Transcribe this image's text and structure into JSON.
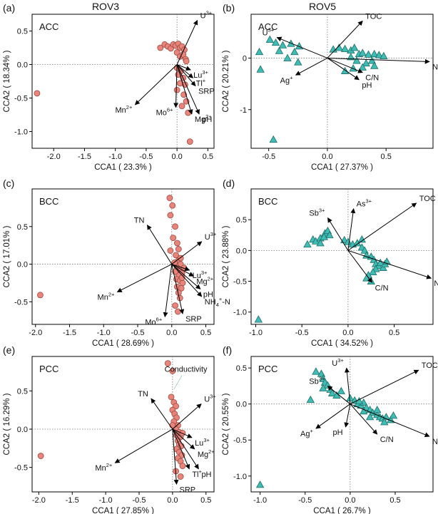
{
  "figure": {
    "column_titles": [
      "ROV3",
      "ROV5"
    ],
    "colors": {
      "circle_fill": "#e8847a",
      "circle_stroke": "#9a4a42",
      "triangle_fill": "#3fbcb4",
      "triangle_stroke": "#1d6e69",
      "arrow": "#000000",
      "dotted": "#777777"
    }
  },
  "chart_data": [
    {
      "type": "scatter",
      "panel_label": "(a)",
      "title": "ACC",
      "xlabel": "CCA1 ( 23.3% )",
      "ylabel": "CCA2 ( 18.34% )",
      "xlim": [
        -2.35,
        0.6
      ],
      "ylim": [
        -1.25,
        0.75
      ],
      "xticks": [
        -2.0,
        -1.5,
        -1.0,
        -0.5,
        0.0,
        0.5
      ],
      "xtick_labels": [
        "-2.0",
        "-1.5",
        "-1.0",
        "-0.5",
        "0.0",
        "0.5"
      ],
      "yticks": [
        -1.0,
        -0.5,
        0.0,
        0.5
      ],
      "ytick_labels": [
        "-1.0",
        "-0.5",
        "0.0",
        "0.5"
      ],
      "marker": "circle",
      "points": [
        [
          -2.27,
          -0.43
        ],
        [
          -0.27,
          0.25
        ],
        [
          -0.2,
          0.3
        ],
        [
          -0.15,
          0.27
        ],
        [
          -0.1,
          0.24
        ],
        [
          -0.06,
          0.3
        ],
        [
          -0.02,
          0.28
        ],
        [
          0.02,
          0.31
        ],
        [
          0.05,
          0.25
        ],
        [
          0.08,
          0.27
        ],
        [
          0.12,
          0.22
        ],
        [
          0.0,
          0.18
        ],
        [
          0.05,
          0.12
        ],
        [
          0.1,
          0.15
        ],
        [
          0.14,
          0.08
        ],
        [
          0.0,
          -0.05
        ],
        [
          0.06,
          -0.1
        ],
        [
          0.1,
          -0.2
        ],
        [
          0.05,
          -0.28
        ],
        [
          0.13,
          -0.3
        ],
        [
          0.0,
          -0.38
        ],
        [
          0.11,
          -0.45
        ],
        [
          0.15,
          -0.55
        ],
        [
          0.08,
          -0.62
        ],
        [
          0.18,
          -0.72
        ],
        [
          0.21,
          -1.15
        ],
        [
          0.15,
          0.05
        ],
        [
          0.02,
          -0.15
        ]
      ],
      "arrows": [
        {
          "label": "U",
          "sup": "3+",
          "sub": "",
          "x": 0.33,
          "y": 0.66
        },
        {
          "label": "Lu",
          "sup": "3+",
          "sub": "",
          "x": 0.22,
          "y": -0.08
        },
        {
          "label": "Tl",
          "sup": "+",
          "sub": "",
          "x": 0.26,
          "y": -0.2
        },
        {
          "label": "SRP",
          "sup": "",
          "sub": "",
          "x": 0.3,
          "y": -0.32
        },
        {
          "label": "Mn",
          "sup": "2+",
          "sub": "",
          "x": -0.68,
          "y": -0.6
        },
        {
          "label": "Mo",
          "sup": "6+",
          "sub": "",
          "x": -0.02,
          "y": -0.64
        },
        {
          "label": "Mg",
          "sup": "2+",
          "sub": "",
          "x": 0.24,
          "y": -0.74
        },
        {
          "label": "pH",
          "sup": "",
          "sub": "",
          "x": 0.36,
          "y": -0.74
        }
      ]
    },
    {
      "type": "scatter",
      "panel_label": "(b)",
      "title": "ACC",
      "xlabel": "CCA1 ( 27.37% )",
      "ylabel": "CCA2 ( 20.21% )",
      "xlim": [
        -0.65,
        0.9
      ],
      "ylim": [
        -1.75,
        0.85
      ],
      "xticks": [
        -0.5,
        0.0,
        0.5
      ],
      "xtick_labels": [
        "-0.5",
        "0.0",
        "0.5"
      ],
      "yticks": [
        -1.0,
        0.0
      ],
      "ytick_labels": [
        "-1",
        "0"
      ],
      "marker": "triangle",
      "points": [
        [
          -0.58,
          0.12
        ],
        [
          -0.57,
          -0.22
        ],
        [
          -0.49,
          0.36
        ],
        [
          -0.44,
          0.3
        ],
        [
          -0.41,
          0.14
        ],
        [
          -0.38,
          0.25
        ],
        [
          -0.31,
          0.28
        ],
        [
          -0.28,
          0.12
        ],
        [
          -0.24,
          0.23
        ],
        [
          -0.34,
          0.0
        ],
        [
          -0.25,
          -0.08
        ],
        [
          -0.46,
          -1.58
        ],
        [
          0.05,
          0.17
        ],
        [
          0.1,
          0.2
        ],
        [
          0.15,
          0.18
        ],
        [
          0.2,
          0.15
        ],
        [
          0.23,
          0.2
        ],
        [
          0.27,
          0.08
        ],
        [
          0.3,
          0.1
        ],
        [
          0.35,
          0.07
        ],
        [
          0.4,
          0.08
        ],
        [
          0.44,
          0.06
        ],
        [
          0.48,
          0.04
        ],
        [
          0.2,
          0.02
        ],
        [
          0.25,
          -0.05
        ],
        [
          0.33,
          -0.1
        ],
        [
          0.38,
          -0.05
        ],
        [
          0.3,
          -0.18
        ],
        [
          0.4,
          -0.15
        ],
        [
          0.22,
          -0.2
        ],
        [
          0.15,
          -0.25
        ]
      ],
      "arrows": [
        {
          "label": "U",
          "sup": "3+",
          "sub": "",
          "x": -0.43,
          "y": 0.4
        },
        {
          "label": "TOC",
          "sup": "",
          "sub": "",
          "x": 0.3,
          "y": 0.72
        },
        {
          "label": "NH",
          "sup": "+",
          "sub": "4",
          "suffix": "-N",
          "x": 0.87,
          "y": -0.07
        },
        {
          "label": "C/N",
          "sup": "",
          "sub": "",
          "x": 0.3,
          "y": -0.28
        },
        {
          "label": "pH",
          "sup": "",
          "sub": "",
          "x": 0.27,
          "y": -0.42
        },
        {
          "label": "Ag",
          "sup": "+",
          "sub": "",
          "x": -0.27,
          "y": -0.33
        }
      ]
    },
    {
      "type": "scatter",
      "panel_label": "(c)",
      "title": "BCC",
      "xlabel": "CCA1 ( 28.69% )",
      "ylabel": "CCA2 ( 17.01% )",
      "xlim": [
        -2.05,
        0.62
      ],
      "ylim": [
        -0.8,
        1.0
      ],
      "xticks": [
        -2.0,
        -1.5,
        -1.0,
        -0.5,
        0.0,
        0.5
      ],
      "xtick_labels": [
        "-2.0",
        "-1.5",
        "-1.0",
        "-0.5",
        "0.0",
        "0.5"
      ],
      "yticks": [
        -0.5,
        0.0,
        0.5
      ],
      "ytick_labels": [
        "-0.5",
        "0.0",
        "0.5"
      ],
      "marker": "circle",
      "points": [
        [
          -1.93,
          -0.41
        ],
        [
          -0.03,
          0.88
        ],
        [
          0.01,
          0.78
        ],
        [
          -0.02,
          0.65
        ],
        [
          0.05,
          0.5
        ],
        [
          0.02,
          0.35
        ],
        [
          0.08,
          0.28
        ],
        [
          0.1,
          0.2
        ],
        [
          -0.02,
          0.18
        ],
        [
          0.06,
          0.12
        ],
        [
          0.1,
          0.05
        ],
        [
          0.13,
          0.0
        ],
        [
          0.08,
          -0.05
        ],
        [
          0.12,
          -0.08
        ],
        [
          0.15,
          -0.12
        ],
        [
          0.1,
          -0.15
        ],
        [
          0.07,
          -0.2
        ],
        [
          0.12,
          -0.22
        ],
        [
          0.16,
          -0.25
        ],
        [
          0.08,
          -0.3
        ],
        [
          0.14,
          -0.32
        ],
        [
          0.1,
          -0.38
        ],
        [
          0.12,
          -0.45
        ],
        [
          0.05,
          -0.55
        ],
        [
          0.09,
          -0.63
        ],
        [
          0.13,
          0.08
        ],
        [
          0.04,
          0.02
        ],
        [
          0.15,
          -0.18
        ],
        [
          0.18,
          -0.05
        ],
        [
          0.05,
          -0.1
        ]
      ],
      "arrows": [
        {
          "label": "TN",
          "sup": "",
          "sub": "",
          "x": -0.36,
          "y": 0.52
        },
        {
          "label": "U",
          "sup": "3+",
          "sub": "",
          "x": 0.44,
          "y": 0.3
        },
        {
          "label": "Lu",
          "sup": "3+",
          "sub": "",
          "x": 0.26,
          "y": -0.08
        },
        {
          "label": "Mg",
          "sup": "2+",
          "sub": "",
          "x": 0.32,
          "y": -0.16
        },
        {
          "label": "pH",
          "sup": "",
          "sub": "",
          "x": 0.42,
          "y": -0.33
        },
        {
          "label": "NH",
          "sup": "+",
          "sub": "4",
          "suffix": "-N",
          "x": 0.44,
          "y": -0.43
        },
        {
          "label": "SRP",
          "sup": "",
          "sub": "",
          "x": 0.16,
          "y": -0.66
        },
        {
          "label": "Mo",
          "sup": "6+",
          "sub": "",
          "x": -0.1,
          "y": -0.7
        },
        {
          "label": "Mn",
          "sup": "2+",
          "sub": "",
          "x": -0.8,
          "y": -0.37
        }
      ]
    },
    {
      "type": "scatter",
      "panel_label": "(d)",
      "title": "BCC",
      "xlabel": "CCA1 ( 34.52% )",
      "ylabel": "CCA2 ( 23.88% )",
      "xlim": [
        -1.05,
        0.92
      ],
      "ylim": [
        -1.2,
        1.0
      ],
      "xticks": [
        -1.0,
        -0.5,
        0.0,
        0.5
      ],
      "xtick_labels": [
        "-1.0",
        "-0.5",
        "0.0",
        "0.5"
      ],
      "yticks": [
        -1.0,
        -0.5,
        0.0,
        0.5
      ],
      "ytick_labels": [
        "-1.0",
        "-0.5",
        "0.0",
        "0.5"
      ],
      "marker": "triangle",
      "points": [
        [
          -0.97,
          -1.12
        ],
        [
          -0.44,
          0.1
        ],
        [
          -0.38,
          0.18
        ],
        [
          -0.35,
          0.15
        ],
        [
          -0.3,
          0.2
        ],
        [
          -0.25,
          0.28
        ],
        [
          -0.22,
          0.32
        ],
        [
          -0.26,
          0.22
        ],
        [
          -0.2,
          0.25
        ],
        [
          -0.3,
          0.12
        ],
        [
          -0.04,
          0.17
        ],
        [
          0.0,
          0.14
        ],
        [
          0.05,
          0.1
        ],
        [
          0.1,
          0.12
        ],
        [
          0.15,
          0.05
        ],
        [
          0.18,
          0.0
        ],
        [
          0.2,
          -0.08
        ],
        [
          0.25,
          -0.1
        ],
        [
          0.28,
          -0.15
        ],
        [
          0.3,
          -0.22
        ],
        [
          0.33,
          -0.25
        ],
        [
          0.35,
          -0.2
        ],
        [
          0.38,
          -0.28
        ],
        [
          0.4,
          -0.22
        ],
        [
          0.42,
          -0.18
        ],
        [
          0.3,
          -0.3
        ],
        [
          0.27,
          -0.35
        ],
        [
          0.22,
          -0.4
        ],
        [
          0.25,
          -0.5
        ],
        [
          0.2,
          -0.45
        ],
        [
          0.15,
          0.18
        ]
      ],
      "arrows": [
        {
          "label": "Sb",
          "sup": "3+",
          "sub": "",
          "x": -0.22,
          "y": 0.53
        },
        {
          "label": "As",
          "sup": "3+",
          "sub": "",
          "x": 0.06,
          "y": 0.68
        },
        {
          "label": "TOC",
          "sup": "",
          "sub": "",
          "x": 0.74,
          "y": 0.77
        },
        {
          "label": "NH",
          "sup": "+",
          "sub": "4",
          "suffix": "-N",
          "x": 0.9,
          "y": -0.45
        },
        {
          "label": "C/N",
          "sup": "",
          "sub": "",
          "x": 0.26,
          "y": -0.52
        }
      ]
    },
    {
      "type": "scatter",
      "panel_label": "(e)",
      "title": "PCC",
      "xlabel": "CCA1 ( 27.85% )",
      "ylabel": "CCA2 ( 16.29% )",
      "xlim": [
        -2.1,
        0.62
      ],
      "ylim": [
        -0.82,
        0.95
      ],
      "xticks": [
        -2.0,
        -1.5,
        -1.0,
        -0.5,
        0.0,
        0.5
      ],
      "xtick_labels": [
        "-2.0",
        "-1.5",
        "-1.0",
        "-0.5",
        "0.0",
        "0.5"
      ],
      "yticks": [
        -0.5,
        0.0,
        0.5
      ],
      "ytick_labels": [
        "-0.5",
        "0.0",
        "0.5"
      ],
      "marker": "circle",
      "points": [
        [
          -1.97,
          -0.35
        ],
        [
          -0.07,
          0.86
        ],
        [
          0.0,
          0.76
        ],
        [
          -0.02,
          0.42
        ],
        [
          0.02,
          0.35
        ],
        [
          0.05,
          0.3
        ],
        [
          0.0,
          0.25
        ],
        [
          0.03,
          0.2
        ],
        [
          0.06,
          0.15
        ],
        [
          0.02,
          0.1
        ],
        [
          0.08,
          0.05
        ],
        [
          0.05,
          0.0
        ],
        [
          0.1,
          -0.04
        ],
        [
          0.06,
          -0.08
        ],
        [
          0.12,
          -0.1
        ],
        [
          0.08,
          -0.15
        ],
        [
          0.1,
          -0.2
        ],
        [
          0.13,
          -0.22
        ],
        [
          0.06,
          -0.26
        ],
        [
          0.1,
          -0.3
        ],
        [
          0.14,
          -0.34
        ],
        [
          0.08,
          -0.38
        ],
        [
          0.12,
          -0.42
        ],
        [
          0.15,
          -0.48
        ],
        [
          0.05,
          -0.55
        ],
        [
          0.12,
          -0.62
        ],
        [
          0.0,
          0.05
        ],
        [
          0.15,
          -0.05
        ]
      ],
      "annotation": {
        "text": "Conductivity"
      },
      "arrows": [
        {
          "label": "TN",
          "sup": "",
          "sub": "",
          "x": -0.32,
          "y": 0.4
        },
        {
          "label": "U",
          "sup": "3+",
          "sub": "",
          "x": 0.43,
          "y": 0.33
        },
        {
          "label": "Lu",
          "sup": "3+",
          "sub": "",
          "x": 0.29,
          "y": -0.11
        },
        {
          "label": "Mg",
          "sup": "2+",
          "sub": "",
          "x": 0.33,
          "y": -0.26
        },
        {
          "label": "Tl",
          "sup": "+",
          "sub": "",
          "x": 0.25,
          "y": -0.52
        },
        {
          "label": "pH",
          "sup": "",
          "sub": "",
          "x": 0.39,
          "y": -0.52
        },
        {
          "label": "SRP",
          "sup": "",
          "sub": "",
          "x": 0.06,
          "y": -0.72
        },
        {
          "label": "Mn",
          "sup": "2+",
          "sub": "",
          "x": -0.86,
          "y": -0.44
        }
      ]
    },
    {
      "type": "scatter",
      "panel_label": "(f)",
      "title": "PCC",
      "xlabel": "CCA1 ( 26.7% )",
      "ylabel": "CCA2 ( 20.55% )",
      "xlim": [
        -1.1,
        0.92
      ],
      "ylim": [
        -1.22,
        0.66
      ],
      "xticks": [
        -1.0,
        -0.5,
        0.0,
        0.5
      ],
      "xtick_labels": [
        "-1.0",
        "-0.5",
        "0.0",
        "0.5"
      ],
      "yticks": [
        -1.0,
        -0.5,
        0.0,
        0.5
      ],
      "ytick_labels": [
        "-1.0",
        "-0.5",
        "0.0",
        "0.5"
      ],
      "marker": "triangle",
      "points": [
        [
          -1.0,
          -1.12
        ],
        [
          -0.44,
          0.06
        ],
        [
          -0.38,
          0.45
        ],
        [
          -0.32,
          0.42
        ],
        [
          -0.3,
          0.35
        ],
        [
          -0.28,
          0.3
        ],
        [
          -0.25,
          0.26
        ],
        [
          -0.22,
          0.2
        ],
        [
          -0.2,
          0.15
        ],
        [
          -0.3,
          0.22
        ],
        [
          -0.15,
          0.12
        ],
        [
          -0.1,
          0.18
        ],
        [
          0.0,
          0.08
        ],
        [
          0.05,
          0.05
        ],
        [
          0.08,
          0.0
        ],
        [
          0.12,
          -0.02
        ],
        [
          0.15,
          0.02
        ],
        [
          0.18,
          -0.05
        ],
        [
          0.22,
          -0.08
        ],
        [
          0.25,
          -0.12
        ],
        [
          0.3,
          -0.15
        ],
        [
          0.33,
          -0.18
        ],
        [
          0.36,
          -0.2
        ],
        [
          0.4,
          -0.18
        ],
        [
          0.45,
          -0.22
        ],
        [
          0.48,
          -0.16
        ],
        [
          0.38,
          -0.25
        ],
        [
          0.3,
          -0.08
        ],
        [
          0.22,
          -0.18
        ],
        [
          0.15,
          -0.1
        ],
        [
          0.1,
          0.04
        ]
      ],
      "arrows": [
        {
          "label": "U",
          "sup": "3+",
          "sub": "",
          "x": -0.04,
          "y": 0.5
        },
        {
          "label": "Sb",
          "sup": "3+",
          "sub": "",
          "x": -0.25,
          "y": 0.25
        },
        {
          "label": "TOC",
          "sup": "",
          "sub": "",
          "x": 0.76,
          "y": 0.47
        },
        {
          "label": "NH",
          "sup": "+",
          "sub": "4",
          "suffix": "-N",
          "x": 0.88,
          "y": -0.45
        },
        {
          "label": "C/N",
          "sup": "",
          "sub": "",
          "x": 0.3,
          "y": -0.42
        },
        {
          "label": "pH",
          "sup": "",
          "sub": "",
          "x": -0.05,
          "y": -0.32
        },
        {
          "label": "Ag",
          "sup": "+",
          "sub": "",
          "x": -0.38,
          "y": -0.34
        }
      ]
    }
  ]
}
